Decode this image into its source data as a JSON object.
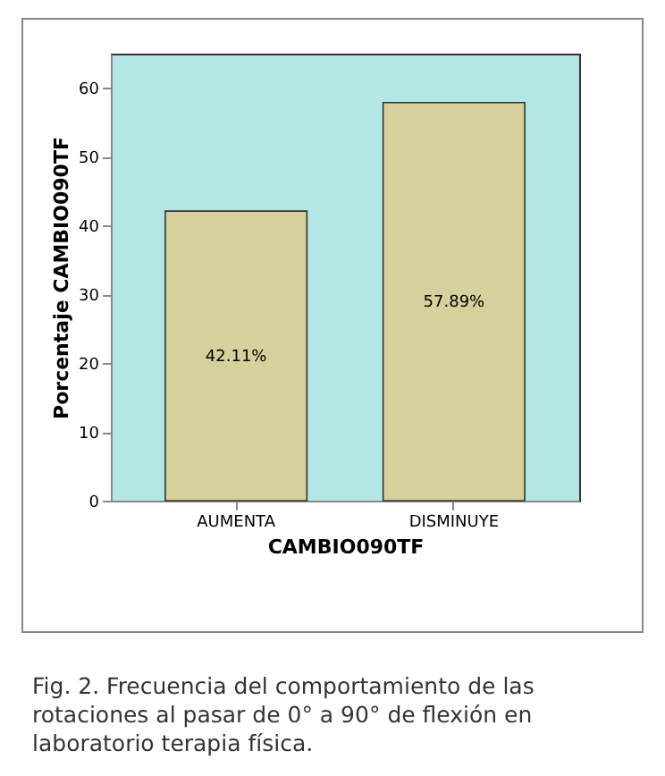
{
  "chart_data": {
    "type": "bar",
    "xlabel": "CAMBIO090TF",
    "ylabel": "Porcentaje CAMBIO090TF",
    "categories": [
      "AUMENTA",
      "DISMINUYE"
    ],
    "values": [
      42.11,
      57.89
    ],
    "value_labels": [
      "42.11%",
      "57.89%"
    ],
    "color": "#d6d19c",
    "ylim": [
      0,
      65
    ],
    "yticks": [
      0,
      10,
      20,
      30,
      40,
      50,
      60
    ],
    "grid": false,
    "annotations": [
      "Fig. 2. Frecuencia del comportamiento de las rotaciones al pasar de 0° a 90° de flexión en laboratorio terapia física."
    ]
  }
}
